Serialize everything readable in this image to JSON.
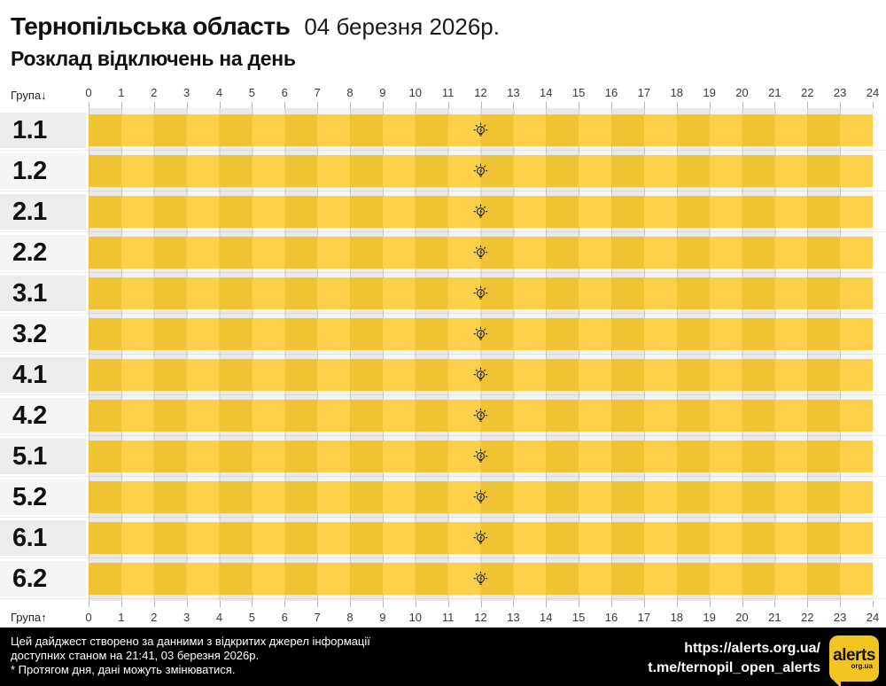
{
  "header": {
    "region": "Тернопільська область",
    "date": "04 березня 2026р.",
    "subtitle": "Розклад відключень на день"
  },
  "axis": {
    "group_label_top": "Група↓",
    "group_label_bottom": "Група↑",
    "hours": [
      "0",
      "1",
      "2",
      "3",
      "4",
      "5",
      "6",
      "7",
      "8",
      "9",
      "10",
      "11",
      "12",
      "13",
      "14",
      "15",
      "16",
      "17",
      "18",
      "19",
      "20",
      "21",
      "22",
      "23",
      "24"
    ]
  },
  "chart_data": {
    "type": "schedule-gantt",
    "title": "Розклад відключень на день",
    "region": "Тернопільська область",
    "date": "04 березня 2026р.",
    "x_axis": {
      "min": 0,
      "max": 24,
      "tick_step": 1
    },
    "groups": [
      "1.1",
      "1.2",
      "2.1",
      "2.2",
      "3.1",
      "3.2",
      "4.1",
      "4.2",
      "5.1",
      "5.2",
      "6.1",
      "6.2"
    ],
    "rows": [
      {
        "group": "1.1",
        "bars": [
          {
            "start": 0,
            "end": 24,
            "icon": "lightbulb"
          }
        ]
      },
      {
        "group": "1.2",
        "bars": [
          {
            "start": 0,
            "end": 24,
            "icon": "lightbulb"
          }
        ]
      },
      {
        "group": "2.1",
        "bars": [
          {
            "start": 0,
            "end": 24,
            "icon": "lightbulb"
          }
        ]
      },
      {
        "group": "2.2",
        "bars": [
          {
            "start": 0,
            "end": 24,
            "icon": "lightbulb"
          }
        ]
      },
      {
        "group": "3.1",
        "bars": [
          {
            "start": 0,
            "end": 24,
            "icon": "lightbulb"
          }
        ]
      },
      {
        "group": "3.2",
        "bars": [
          {
            "start": 0,
            "end": 24,
            "icon": "lightbulb"
          }
        ]
      },
      {
        "group": "4.1",
        "bars": [
          {
            "start": 0,
            "end": 24,
            "icon": "lightbulb"
          }
        ]
      },
      {
        "group": "4.2",
        "bars": [
          {
            "start": 0,
            "end": 24,
            "icon": "lightbulb"
          }
        ]
      },
      {
        "group": "5.1",
        "bars": [
          {
            "start": 0,
            "end": 24,
            "icon": "lightbulb"
          }
        ]
      },
      {
        "group": "5.2",
        "bars": [
          {
            "start": 0,
            "end": 24,
            "icon": "lightbulb"
          }
        ]
      },
      {
        "group": "6.1",
        "bars": [
          {
            "start": 0,
            "end": 24,
            "icon": "lightbulb"
          }
        ]
      },
      {
        "group": "6.2",
        "bars": [
          {
            "start": 0,
            "end": 24,
            "icon": "lightbulb"
          }
        ]
      }
    ]
  },
  "footer": {
    "disclaimer_lines": [
      "Цей дайджест створено за данними з відкритих джерел інформації",
      "доступних станом на 21:41, 03 березня 2026р.",
      "* Протягом дня, дані можуть змінюватися."
    ],
    "site_url": "https://alerts.org.ua/",
    "telegram": "t.me/ternopil_open_alerts",
    "logo": {
      "text": "alerts",
      "suffix": "org.ua"
    }
  },
  "colors": {
    "bar_yellow_dark": "#F0C335",
    "bar_yellow_light": "#FCD049",
    "stripe_dark": "#E9E9E9",
    "stripe_light": "#F5F5F6",
    "gridline": "#C9C9C9",
    "label_cell_dark": "#ECECEC",
    "label_cell_light": "#F5F5F5",
    "footer_bg": "#000000",
    "footer_text": "#FFFFFF",
    "logo_yellow": "#F2C522",
    "icon_color": "#2B2B2B"
  }
}
